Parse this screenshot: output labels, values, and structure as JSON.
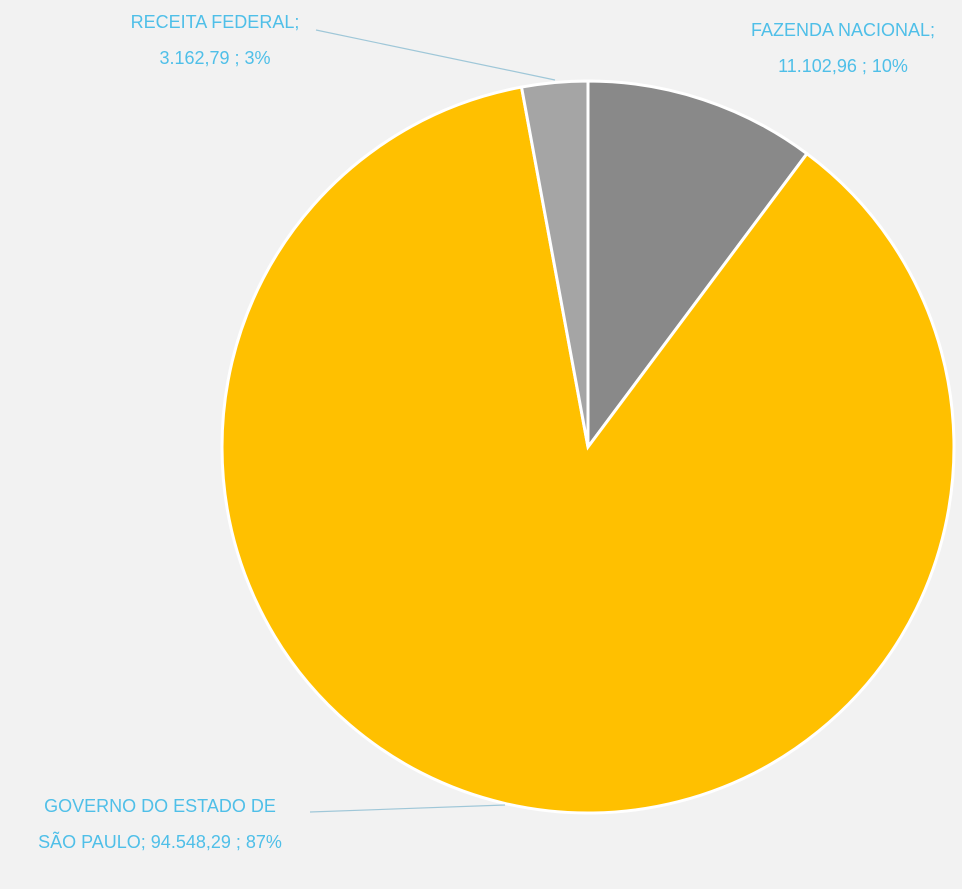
{
  "chart_data": {
    "type": "pie",
    "categories": [
      "FAZENDA NACIONAL",
      "GOVERNO DO ESTADO DE SÃO PAULO",
      "RECEITA FEDERAL"
    ],
    "values": [
      11102.96,
      94548.29,
      3162.79
    ],
    "value_labels": [
      "11.102,96",
      "94.548,29",
      "3.162,79"
    ],
    "percentages": [
      10,
      87,
      3
    ],
    "percentage_labels": [
      "10%",
      "87%",
      "3%"
    ],
    "colors": [
      "#898989",
      "#ffc000",
      "#a5a5a5"
    ]
  }
}
